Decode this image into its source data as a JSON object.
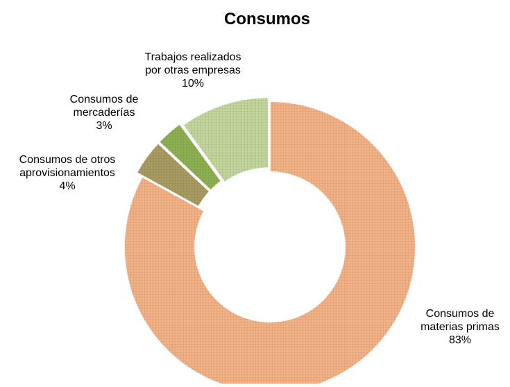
{
  "chart_data": {
    "type": "pie",
    "title": "Consumos",
    "donut": true,
    "slices": [
      {
        "label_lines": [
          "Consumos de",
          "materias primas"
        ],
        "value": 83,
        "pct_label": "83%",
        "color": "#f4b183"
      },
      {
        "label_lines": [
          "Consumos de otros",
          "aprovisionamientos"
        ],
        "value": 4,
        "pct_label": "4%",
        "color": "#a89c60"
      },
      {
        "label_lines": [
          "Consumos de",
          "mercaderías"
        ],
        "value": 3,
        "pct_label": "3%",
        "color": "#8fb050"
      },
      {
        "label_lines": [
          "Trabajos realizados",
          "por otras empresas"
        ],
        "value": 10,
        "pct_label": "10%",
        "color": "#c3d69b"
      }
    ],
    "legend": "none"
  }
}
